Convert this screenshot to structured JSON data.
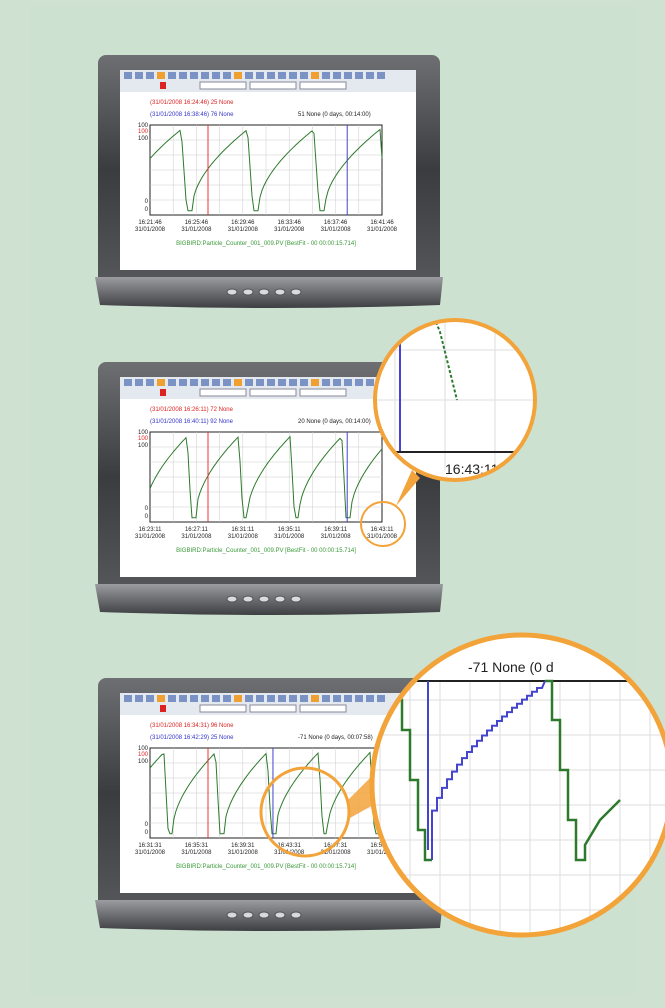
{
  "panels": [
    {
      "cursor_a": "(31/01/2008 16:24:46) 25 None",
      "cursor_b": "(31/01/2008 16:38:46) 76 None",
      "delta": "51 None (0 days, 00:14:00)",
      "y_labels": [
        "100",
        "100",
        "100",
        "0",
        "0"
      ],
      "x_labels": [
        {
          "time": "16:21:46",
          "date": "31/01/2008"
        },
        {
          "time": "16:25:46",
          "date": "31/01/2008"
        },
        {
          "time": "16:29:46",
          "date": "31/01/2008"
        },
        {
          "time": "16:33:46",
          "date": "31/01/2008"
        },
        {
          "time": "16:37:46",
          "date": "31/01/2008"
        },
        {
          "time": "16:41:46",
          "date": "31/01/2008"
        }
      ],
      "footer": "BIGBIRD:Particle_Counter_001_009.PV [BestFit - 00 00:00:15.714]"
    },
    {
      "cursor_a": "(31/01/2008 16:26:11) 72 None",
      "cursor_b": "(31/01/2008 16:40:11) 92 None",
      "delta": "20 None (0 days, 00:14:00)",
      "y_labels": [
        "100",
        "100",
        "100",
        "0",
        "0"
      ],
      "x_labels": [
        {
          "time": "16:23:11",
          "date": "31/01/2008"
        },
        {
          "time": "16:27:11",
          "date": "31/01/2008"
        },
        {
          "time": "16:31:11",
          "date": "31/01/2008"
        },
        {
          "time": "16:35:11",
          "date": "31/01/2008"
        },
        {
          "time": "16:39:11",
          "date": "31/01/2008"
        },
        {
          "time": "16:43:11",
          "date": "31/01/2008"
        }
      ],
      "footer": "BIGBIRD:Particle_Counter_001_009.PV [BestFit - 00 00:00:15.714]"
    },
    {
      "cursor_a": "(31/01/2008 16:34:31) 96 None",
      "cursor_b": "(31/01/2008 16:42:29) 25 None",
      "delta": "-71 None (0 days, 00:07:58)",
      "y_labels": [
        "100",
        "100",
        "100",
        "0",
        "0"
      ],
      "x_labels": [
        {
          "time": "16:31:31",
          "date": "31/01/2008"
        },
        {
          "time": "16:35:31",
          "date": "31/01/2008"
        },
        {
          "time": "16:39:31",
          "date": "31/01/2008"
        },
        {
          "time": "16:43:31",
          "date": "31/01/2008"
        },
        {
          "time": "16:47:31",
          "date": "31/01/2008"
        },
        {
          "time": "16:51:31",
          "date": "31/01/2008"
        }
      ],
      "footer": "BIGBIRD:Particle_Counter_001_009.PV [BestFit - 00 00:00:15.714]"
    }
  ],
  "zooms": [
    {
      "label": "16:43:11"
    },
    {
      "label": "-71 None (0 d"
    }
  ]
}
